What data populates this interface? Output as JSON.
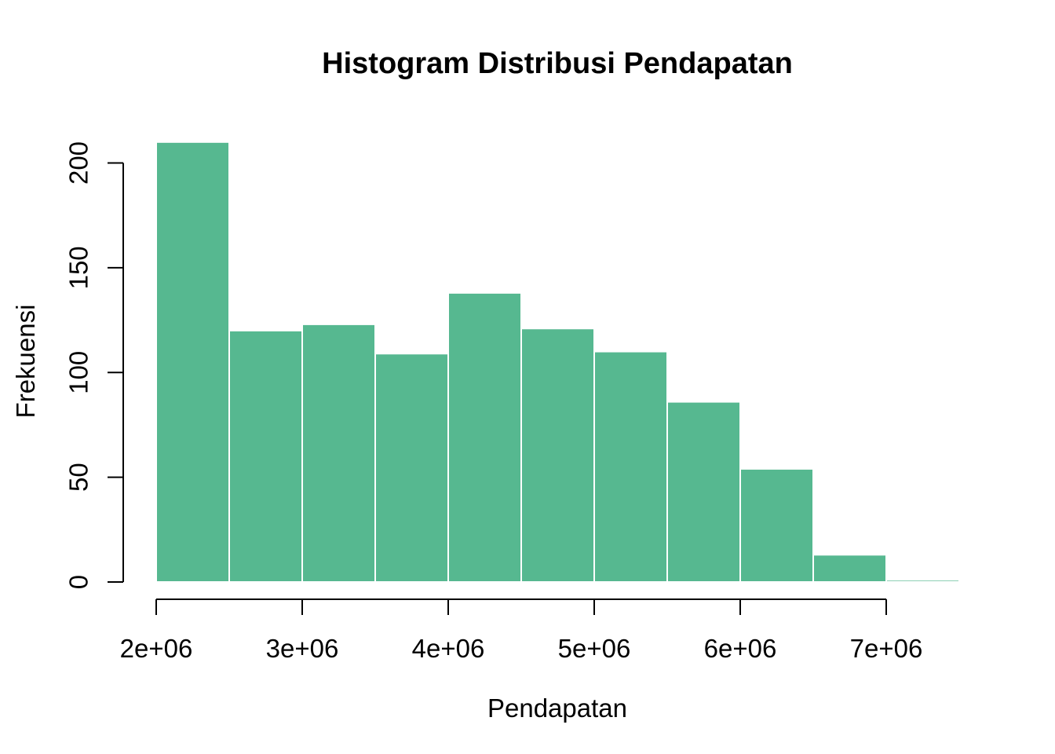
{
  "chart_data": {
    "type": "bar",
    "subtype": "histogram",
    "title": "Histogram Distribusi Pendapatan",
    "xlabel": "Pendapatan",
    "ylabel": "Frekuensi",
    "bin_start": 2000000,
    "bin_width": 500000,
    "bin_edges": [
      2000000,
      2500000,
      3000000,
      3500000,
      4000000,
      4500000,
      5000000,
      5500000,
      6000000,
      6500000,
      7000000,
      7500000
    ],
    "counts": [
      210,
      120,
      123,
      109,
      138,
      121,
      110,
      86,
      54,
      13,
      1
    ],
    "x_ticks": [
      {
        "value": 2000000,
        "label": "2e+06"
      },
      {
        "value": 3000000,
        "label": "3e+06"
      },
      {
        "value": 4000000,
        "label": "4e+06"
      },
      {
        "value": 5000000,
        "label": "5e+06"
      },
      {
        "value": 6000000,
        "label": "6e+06"
      },
      {
        "value": 7000000,
        "label": "7e+06"
      }
    ],
    "y_ticks": [
      {
        "value": 0,
        "label": "0"
      },
      {
        "value": 50,
        "label": "50"
      },
      {
        "value": 100,
        "label": "100"
      },
      {
        "value": 150,
        "label": "150"
      },
      {
        "value": 200,
        "label": "200"
      }
    ],
    "xlim": [
      2000000,
      7500000
    ],
    "ylim": [
      0,
      210
    ],
    "grid": false,
    "legend": "none",
    "bar_color": "#56B890",
    "bar_border_color": "#FFFFFF",
    "axis_color": "#000000",
    "text_color": "#000000",
    "background_color": "#FFFFFF"
  }
}
